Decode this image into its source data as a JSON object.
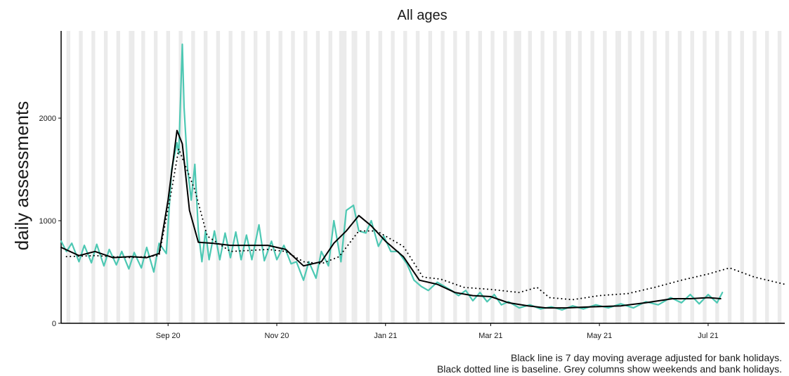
{
  "chart_data": {
    "type": "line",
    "title": "All ages",
    "xlabel": "",
    "ylabel": "daily assessments",
    "x_domain": [
      "2020-07-22",
      "2021-09-01"
    ],
    "ylim": [
      0,
      2850
    ],
    "y_ticks": [
      {
        "value": 0,
        "label": "0"
      },
      {
        "value": 1000,
        "label": "1000"
      },
      {
        "value": 2000,
        "label": "2000"
      }
    ],
    "x_ticks": [
      {
        "date": "2020-09-20",
        "label": "Sep 20"
      },
      {
        "date": "2020-11-20",
        "label": "Nov 20"
      },
      {
        "date": "2021-01-20",
        "label": "Jan 21"
      },
      {
        "date": "2021-03-20",
        "label": "Mar 21"
      },
      {
        "date": "2021-05-20",
        "label": "May 21"
      },
      {
        "date": "2021-07-20",
        "label": "Jul 21"
      }
    ],
    "grid": false,
    "weekend_columns": true,
    "bank_holidays": [
      "2020-08-31",
      "2020-12-25",
      "2020-12-28",
      "2021-01-01",
      "2021-04-02",
      "2021-04-05",
      "2021-05-03",
      "2021-05-31"
    ],
    "series": [
      {
        "key": "raw",
        "color": "#4dc8b3",
        "style": "solid",
        "points": [
          [
            "2020-07-22",
            800
          ],
          [
            "2020-07-25",
            700
          ],
          [
            "2020-07-28",
            780
          ],
          [
            "2020-08-01",
            600
          ],
          [
            "2020-08-04",
            760
          ],
          [
            "2020-08-08",
            590
          ],
          [
            "2020-08-11",
            770
          ],
          [
            "2020-08-15",
            560
          ],
          [
            "2020-08-18",
            720
          ],
          [
            "2020-08-22",
            570
          ],
          [
            "2020-08-25",
            700
          ],
          [
            "2020-08-29",
            530
          ],
          [
            "2020-09-01",
            690
          ],
          [
            "2020-09-05",
            540
          ],
          [
            "2020-09-08",
            740
          ],
          [
            "2020-09-12",
            500
          ],
          [
            "2020-09-15",
            780
          ],
          [
            "2020-09-19",
            680
          ],
          [
            "2020-09-22",
            1500
          ],
          [
            "2020-09-25",
            1760
          ],
          [
            "2020-09-26",
            1650
          ],
          [
            "2020-09-28",
            2720
          ],
          [
            "2020-09-29",
            2100
          ],
          [
            "2020-10-01",
            1500
          ],
          [
            "2020-10-03",
            1200
          ],
          [
            "2020-10-05",
            1550
          ],
          [
            "2020-10-07",
            900
          ],
          [
            "2020-10-09",
            600
          ],
          [
            "2020-10-11",
            900
          ],
          [
            "2020-10-13",
            620
          ],
          [
            "2020-10-16",
            900
          ],
          [
            "2020-10-19",
            620
          ],
          [
            "2020-10-22",
            880
          ],
          [
            "2020-10-25",
            640
          ],
          [
            "2020-10-28",
            890
          ],
          [
            "2020-10-31",
            620
          ],
          [
            "2020-11-03",
            860
          ],
          [
            "2020-11-06",
            620
          ],
          [
            "2020-11-10",
            960
          ],
          [
            "2020-11-13",
            610
          ],
          [
            "2020-11-17",
            800
          ],
          [
            "2020-11-20",
            620
          ],
          [
            "2020-11-24",
            760
          ],
          [
            "2020-11-28",
            580
          ],
          [
            "2020-12-01",
            600
          ],
          [
            "2020-12-05",
            420
          ],
          [
            "2020-12-08",
            600
          ],
          [
            "2020-12-12",
            440
          ],
          [
            "2020-12-15",
            700
          ],
          [
            "2020-12-19",
            560
          ],
          [
            "2020-12-22",
            1000
          ],
          [
            "2020-12-26",
            600
          ],
          [
            "2020-12-29",
            1100
          ],
          [
            "2021-01-02",
            1150
          ],
          [
            "2021-01-05",
            900
          ],
          [
            "2021-01-09",
            880
          ],
          [
            "2021-01-12",
            1000
          ],
          [
            "2021-01-16",
            750
          ],
          [
            "2021-01-19",
            850
          ],
          [
            "2021-01-23",
            700
          ],
          [
            "2021-01-27",
            700
          ],
          [
            "2021-02-01",
            580
          ],
          [
            "2021-02-05",
            420
          ],
          [
            "2021-02-09",
            360
          ],
          [
            "2021-02-13",
            320
          ],
          [
            "2021-02-18",
            400
          ],
          [
            "2021-02-22",
            360
          ],
          [
            "2021-02-26",
            320
          ],
          [
            "2021-03-02",
            270
          ],
          [
            "2021-03-06",
            320
          ],
          [
            "2021-03-10",
            220
          ],
          [
            "2021-03-14",
            300
          ],
          [
            "2021-03-18",
            210
          ],
          [
            "2021-03-22",
            280
          ],
          [
            "2021-03-26",
            180
          ],
          [
            "2021-03-30",
            210
          ],
          [
            "2021-04-05",
            150
          ],
          [
            "2021-04-11",
            180
          ],
          [
            "2021-04-17",
            140
          ],
          [
            "2021-04-23",
            160
          ],
          [
            "2021-04-29",
            130
          ],
          [
            "2021-05-05",
            170
          ],
          [
            "2021-05-11",
            140
          ],
          [
            "2021-05-18",
            180
          ],
          [
            "2021-05-25",
            150
          ],
          [
            "2021-06-01",
            190
          ],
          [
            "2021-06-08",
            150
          ],
          [
            "2021-06-15",
            210
          ],
          [
            "2021-06-22",
            180
          ],
          [
            "2021-06-29",
            250
          ],
          [
            "2021-07-05",
            200
          ],
          [
            "2021-07-10",
            280
          ],
          [
            "2021-07-15",
            190
          ],
          [
            "2021-07-20",
            280
          ],
          [
            "2021-07-25",
            200
          ],
          [
            "2021-07-28",
            300
          ]
        ]
      },
      {
        "key": "moving_average",
        "color": "#000000",
        "style": "solid",
        "points": [
          [
            "2020-07-22",
            740
          ],
          [
            "2020-08-01",
            660
          ],
          [
            "2020-08-10",
            700
          ],
          [
            "2020-08-20",
            640
          ],
          [
            "2020-08-30",
            650
          ],
          [
            "2020-09-08",
            640
          ],
          [
            "2020-09-15",
            680
          ],
          [
            "2020-09-20",
            1200
          ],
          [
            "2020-09-25",
            1880
          ],
          [
            "2020-09-28",
            1750
          ],
          [
            "2020-10-02",
            1100
          ],
          [
            "2020-10-07",
            790
          ],
          [
            "2020-10-15",
            780
          ],
          [
            "2020-10-25",
            760
          ],
          [
            "2020-11-05",
            760
          ],
          [
            "2020-11-15",
            760
          ],
          [
            "2020-11-25",
            720
          ],
          [
            "2020-12-05",
            560
          ],
          [
            "2020-12-15",
            600
          ],
          [
            "2020-12-22",
            780
          ],
          [
            "2020-12-29",
            900
          ],
          [
            "2021-01-05",
            1050
          ],
          [
            "2021-01-12",
            950
          ],
          [
            "2021-01-20",
            800
          ],
          [
            "2021-01-30",
            650
          ],
          [
            "2021-02-08",
            420
          ],
          [
            "2021-02-18",
            380
          ],
          [
            "2021-02-28",
            300
          ],
          [
            "2021-03-10",
            270
          ],
          [
            "2021-03-20",
            260
          ],
          [
            "2021-03-30",
            200
          ],
          [
            "2021-04-10",
            170
          ],
          [
            "2021-04-20",
            150
          ],
          [
            "2021-05-01",
            150
          ],
          [
            "2021-05-15",
            160
          ],
          [
            "2021-06-01",
            170
          ],
          [
            "2021-06-15",
            200
          ],
          [
            "2021-06-30",
            240
          ],
          [
            "2021-07-10",
            240
          ],
          [
            "2021-07-20",
            250
          ],
          [
            "2021-07-27",
            240
          ]
        ]
      },
      {
        "key": "baseline",
        "color": "#000000",
        "style": "dotted",
        "points": [
          [
            "2020-07-25",
            650
          ],
          [
            "2020-08-10",
            660
          ],
          [
            "2020-08-30",
            640
          ],
          [
            "2020-09-15",
            660
          ],
          [
            "2020-09-22",
            1300
          ],
          [
            "2020-09-26",
            1700
          ],
          [
            "2020-10-05",
            1300
          ],
          [
            "2020-10-12",
            850
          ],
          [
            "2020-10-25",
            700
          ],
          [
            "2020-11-15",
            720
          ],
          [
            "2020-11-25",
            700
          ],
          [
            "2020-12-05",
            600
          ],
          [
            "2020-12-15",
            580
          ],
          [
            "2020-12-25",
            650
          ],
          [
            "2021-01-05",
            900
          ],
          [
            "2021-01-15",
            900
          ],
          [
            "2021-01-30",
            750
          ],
          [
            "2021-02-10",
            450
          ],
          [
            "2021-02-20",
            430
          ],
          [
            "2021-03-05",
            350
          ],
          [
            "2021-03-20",
            330
          ],
          [
            "2021-04-05",
            300
          ],
          [
            "2021-04-15",
            350
          ],
          [
            "2021-04-22",
            250
          ],
          [
            "2021-05-05",
            230
          ],
          [
            "2021-05-20",
            270
          ],
          [
            "2021-06-05",
            290
          ],
          [
            "2021-06-20",
            350
          ],
          [
            "2021-07-05",
            420
          ],
          [
            "2021-07-20",
            480
          ],
          [
            "2021-08-01",
            540
          ],
          [
            "2021-08-15",
            450
          ],
          [
            "2021-09-01",
            380
          ]
        ]
      }
    ],
    "footnotes": [
      "Black line is 7 day moving average adjusted for bank holidays.",
      "Black dotted line is baseline. Grey columns show weekends and bank holidays."
    ]
  }
}
